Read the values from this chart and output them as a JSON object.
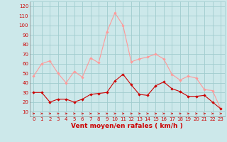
{
  "hours": [
    0,
    1,
    2,
    3,
    4,
    5,
    6,
    7,
    8,
    9,
    10,
    11,
    12,
    13,
    14,
    15,
    16,
    17,
    18,
    19,
    20,
    21,
    22,
    23
  ],
  "wind_avg": [
    30,
    30,
    20,
    23,
    23,
    20,
    23,
    28,
    29,
    30,
    42,
    49,
    38,
    28,
    27,
    37,
    41,
    34,
    31,
    26,
    26,
    27,
    20,
    13
  ],
  "wind_gust": [
    47,
    60,
    63,
    50,
    40,
    52,
    46,
    66,
    61,
    93,
    113,
    100,
    62,
    65,
    67,
    70,
    65,
    49,
    43,
    47,
    45,
    33,
    32,
    13
  ],
  "bg_color": "#cce8ea",
  "grid_color": "#a0ccce",
  "line_avg_color": "#cc0000",
  "line_gust_color": "#ff9999",
  "marker_size": 2.2,
  "xlabel": "Vent moyen/en rafales ( km/h )",
  "xlabel_color": "#cc0000",
  "ylabel_ticks": [
    10,
    20,
    30,
    40,
    50,
    60,
    70,
    80,
    90,
    100,
    110,
    120
  ],
  "ylim": [
    5,
    125
  ],
  "xlim": [
    -0.5,
    23.5
  ],
  "tick_fontsize": 5.0,
  "xlabel_fontsize": 6.5
}
